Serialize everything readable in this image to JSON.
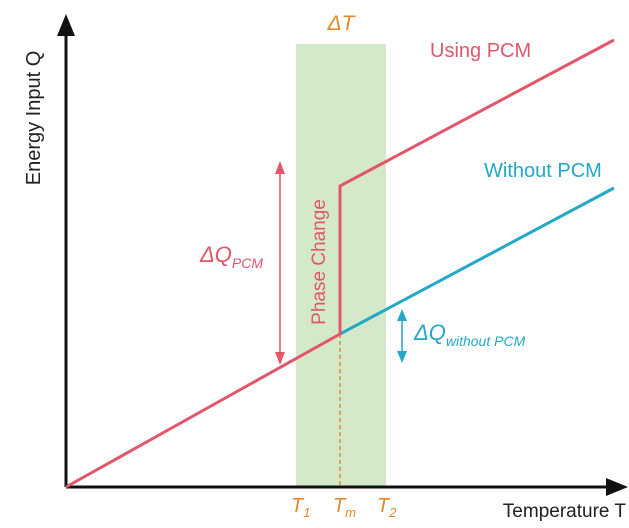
{
  "axes": {
    "y_label": "Energy Input Q",
    "x_label": "Temperature T"
  },
  "band": {
    "label": "ΔT",
    "color": "#d4e9c9"
  },
  "curves": {
    "pcm": {
      "label": "Using PCM",
      "color": "#e2566a"
    },
    "no_pcm": {
      "label": "Without PCM",
      "color": "#22a8c9"
    }
  },
  "annotations": {
    "phase_change": "Phase Change",
    "dq_pcm_main": "ΔQ",
    "dq_pcm_sub": "PCM",
    "dq_without_main": "ΔQ",
    "dq_without_sub": "without PCM"
  },
  "ticks": {
    "t1_main": "T",
    "t1_sub": "1",
    "tm_main": "T",
    "tm_sub": "m",
    "t2_main": "T",
    "t2_sub": "2"
  },
  "accent_color": "#e08a2c"
}
